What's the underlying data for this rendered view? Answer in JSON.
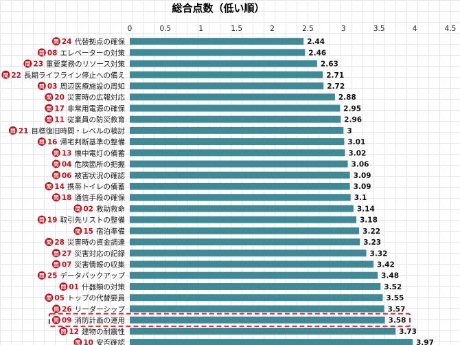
{
  "chart_data": {
    "type": "bar",
    "orientation": "horizontal",
    "title": "総合点数（低い順）",
    "xlim": [
      0,
      4.5
    ],
    "xticks": [
      "0",
      "0.5",
      "1",
      "1.5",
      "2",
      "2.5",
      "3",
      "3.5",
      "4",
      "4.5"
    ],
    "grid": true,
    "bar_color": "#3f8a96",
    "badge_color": "#c0101a",
    "highlight_color": "#d0141e",
    "highlight_index": 25,
    "categories": [
      {
        "prefix": "問",
        "num": "24",
        "label": "代替拠点の確保",
        "value": 2.44,
        "display": "2.44"
      },
      {
        "prefix": "問",
        "num": "08",
        "label": "エレベーターの対策",
        "value": 2.46,
        "display": "2.46"
      },
      {
        "prefix": "問",
        "num": "23",
        "label": "重要業務のリソース対策",
        "value": 2.63,
        "display": "2.63"
      },
      {
        "prefix": "問",
        "num": "22",
        "label": "長期ライフライン停止への備え",
        "value": 2.71,
        "display": "2.71"
      },
      {
        "prefix": "問",
        "num": "03",
        "label": "周辺医療施設の周知",
        "value": 2.72,
        "display": "2.72"
      },
      {
        "prefix": "問",
        "num": "20",
        "label": "災害時の広報対応",
        "value": 2.88,
        "display": "2.88"
      },
      {
        "prefix": "問",
        "num": "17",
        "label": "非常用電源の確保",
        "value": 2.95,
        "display": "2.95"
      },
      {
        "prefix": "問",
        "num": "11",
        "label": "従業員の防災教育",
        "value": 2.96,
        "display": "2.96"
      },
      {
        "prefix": "問",
        "num": "21",
        "label": "目標復旧時間・レベルの検討",
        "value": 3.0,
        "display": "3"
      },
      {
        "prefix": "問",
        "num": "16",
        "label": "帰宅判断基準の整備",
        "value": 3.01,
        "display": "3.01"
      },
      {
        "prefix": "問",
        "num": "13",
        "label": "懐中電灯の備蓄",
        "value": 3.02,
        "display": "3.02"
      },
      {
        "prefix": "問",
        "num": "04",
        "label": "危険箇所の把握",
        "value": 3.06,
        "display": "3.06"
      },
      {
        "prefix": "問",
        "num": "06",
        "label": "被害状況の確認",
        "value": 3.09,
        "display": "3.09"
      },
      {
        "prefix": "問",
        "num": "14",
        "label": "携帯トイレの備蓄",
        "value": 3.09,
        "display": "3.09"
      },
      {
        "prefix": "問",
        "num": "18",
        "label": "通信手段の確保",
        "value": 3.1,
        "display": "3.1"
      },
      {
        "prefix": "問",
        "num": "02",
        "label": "救助救命",
        "value": 3.14,
        "display": "3.14"
      },
      {
        "prefix": "問",
        "num": "19",
        "label": "取引先リストの整備",
        "value": 3.18,
        "display": "3.18"
      },
      {
        "prefix": "問",
        "num": "15",
        "label": "宿泊準備",
        "value": 3.22,
        "display": "3.22"
      },
      {
        "prefix": "問",
        "num": "28",
        "label": "災害時の資金調達",
        "value": 3.23,
        "display": "3.23"
      },
      {
        "prefix": "問",
        "num": "27",
        "label": "災害対応の記録",
        "value": 3.32,
        "display": "3.32"
      },
      {
        "prefix": "問",
        "num": "07",
        "label": "災害情報の収集",
        "value": 3.42,
        "display": "3.42"
      },
      {
        "prefix": "問",
        "num": "25",
        "label": "データバックアップ",
        "value": 3.48,
        "display": "3.48"
      },
      {
        "prefix": "問",
        "num": "01",
        "label": "什器類の対策",
        "value": 3.52,
        "display": "3.52"
      },
      {
        "prefix": "問",
        "num": "05",
        "label": "トップの代替要員",
        "value": 3.55,
        "display": "3.55"
      },
      {
        "prefix": "問",
        "num": "26",
        "label": "リーダーシップ",
        "value": 3.57,
        "display": "3.57"
      },
      {
        "prefix": "問",
        "num": "09",
        "label": "消防計画の運用",
        "value": 3.58,
        "display": "3.58"
      },
      {
        "prefix": "問",
        "num": "12",
        "label": "建物の耐震性",
        "value": 3.73,
        "display": "3.73"
      },
      {
        "prefix": "問",
        "num": "10",
        "label": "安否確認",
        "value": 3.97,
        "display": "3.97"
      }
    ]
  }
}
